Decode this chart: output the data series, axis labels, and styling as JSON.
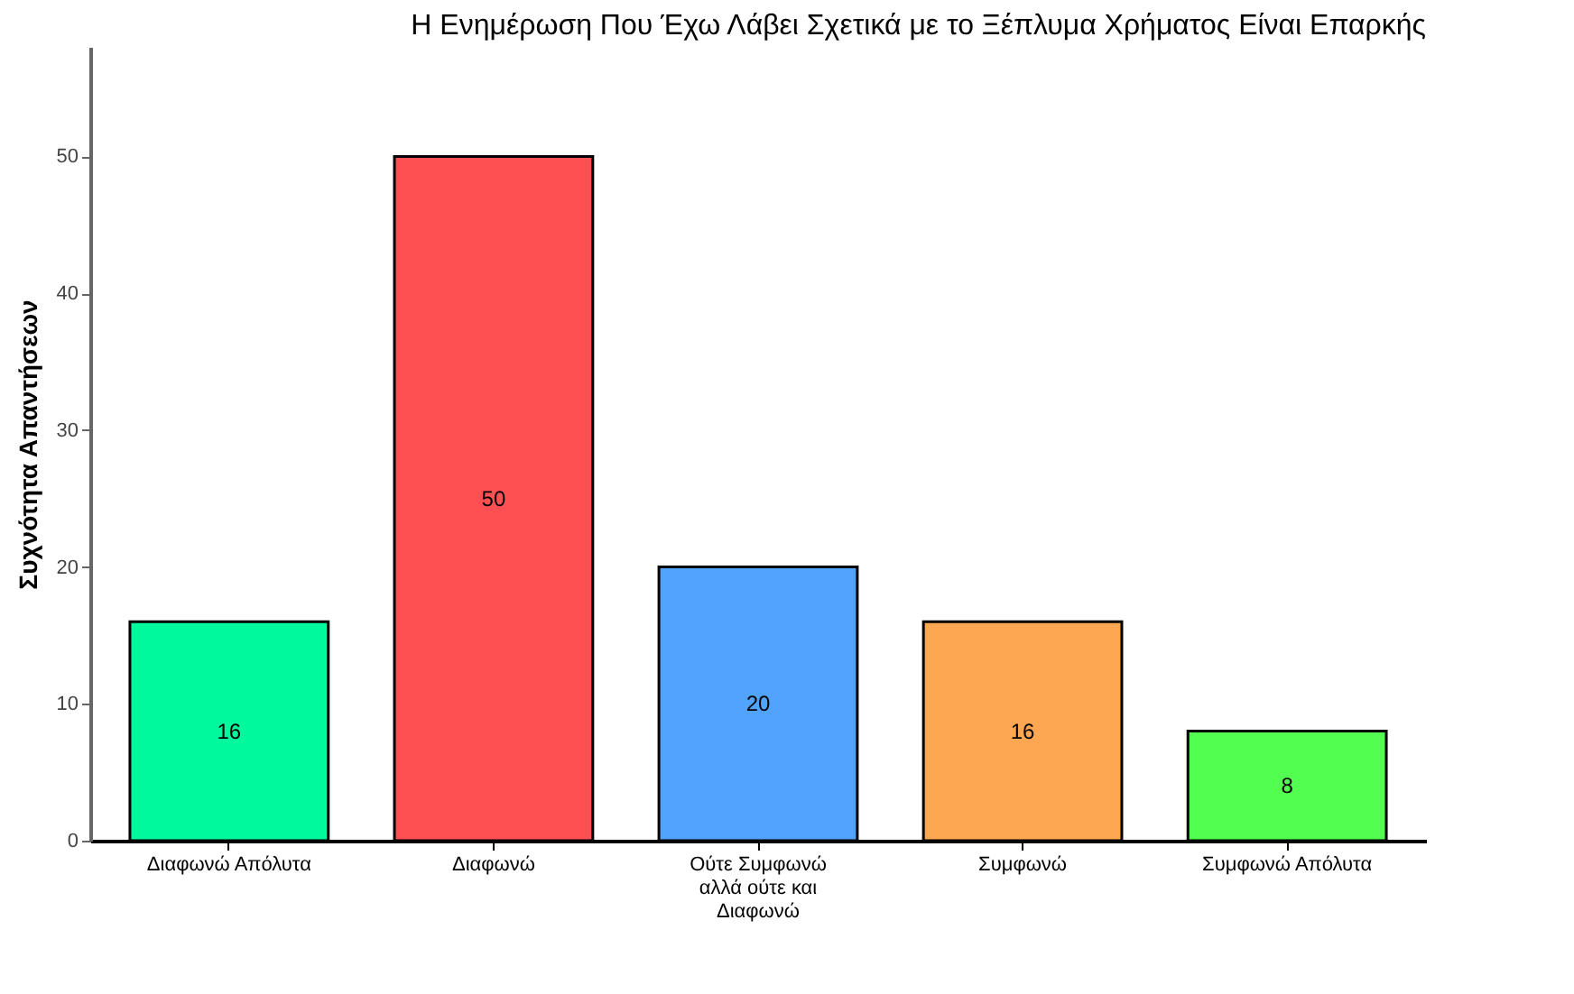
{
  "chart_data": {
    "type": "bar",
    "title": "Η Ενημέρωση Που Έχω Λάβει Σχετικά με το Ξέπλυμα Χρήματος Είναι Επαρκής",
    "ylabel": "Συχνότητα Απαντήσεων",
    "categories": [
      "Διαφωνώ Απόλυτα",
      "Διαφωνώ",
      "Ούτε Συμφωνώ αλλά ούτε και Διαφωνώ",
      "Συμφωνώ",
      "Συμφωνώ Απόλυτα"
    ],
    "values": [
      16,
      50,
      20,
      16,
      8
    ],
    "colors": [
      "#00f99d",
      "#fe5052",
      "#52a3fd",
      "#fea752",
      "#52fe4f"
    ],
    "ylim": [
      0,
      58
    ],
    "yticks": [
      0,
      10,
      20,
      30,
      40,
      50
    ],
    "grid": false,
    "data_labels": true
  }
}
